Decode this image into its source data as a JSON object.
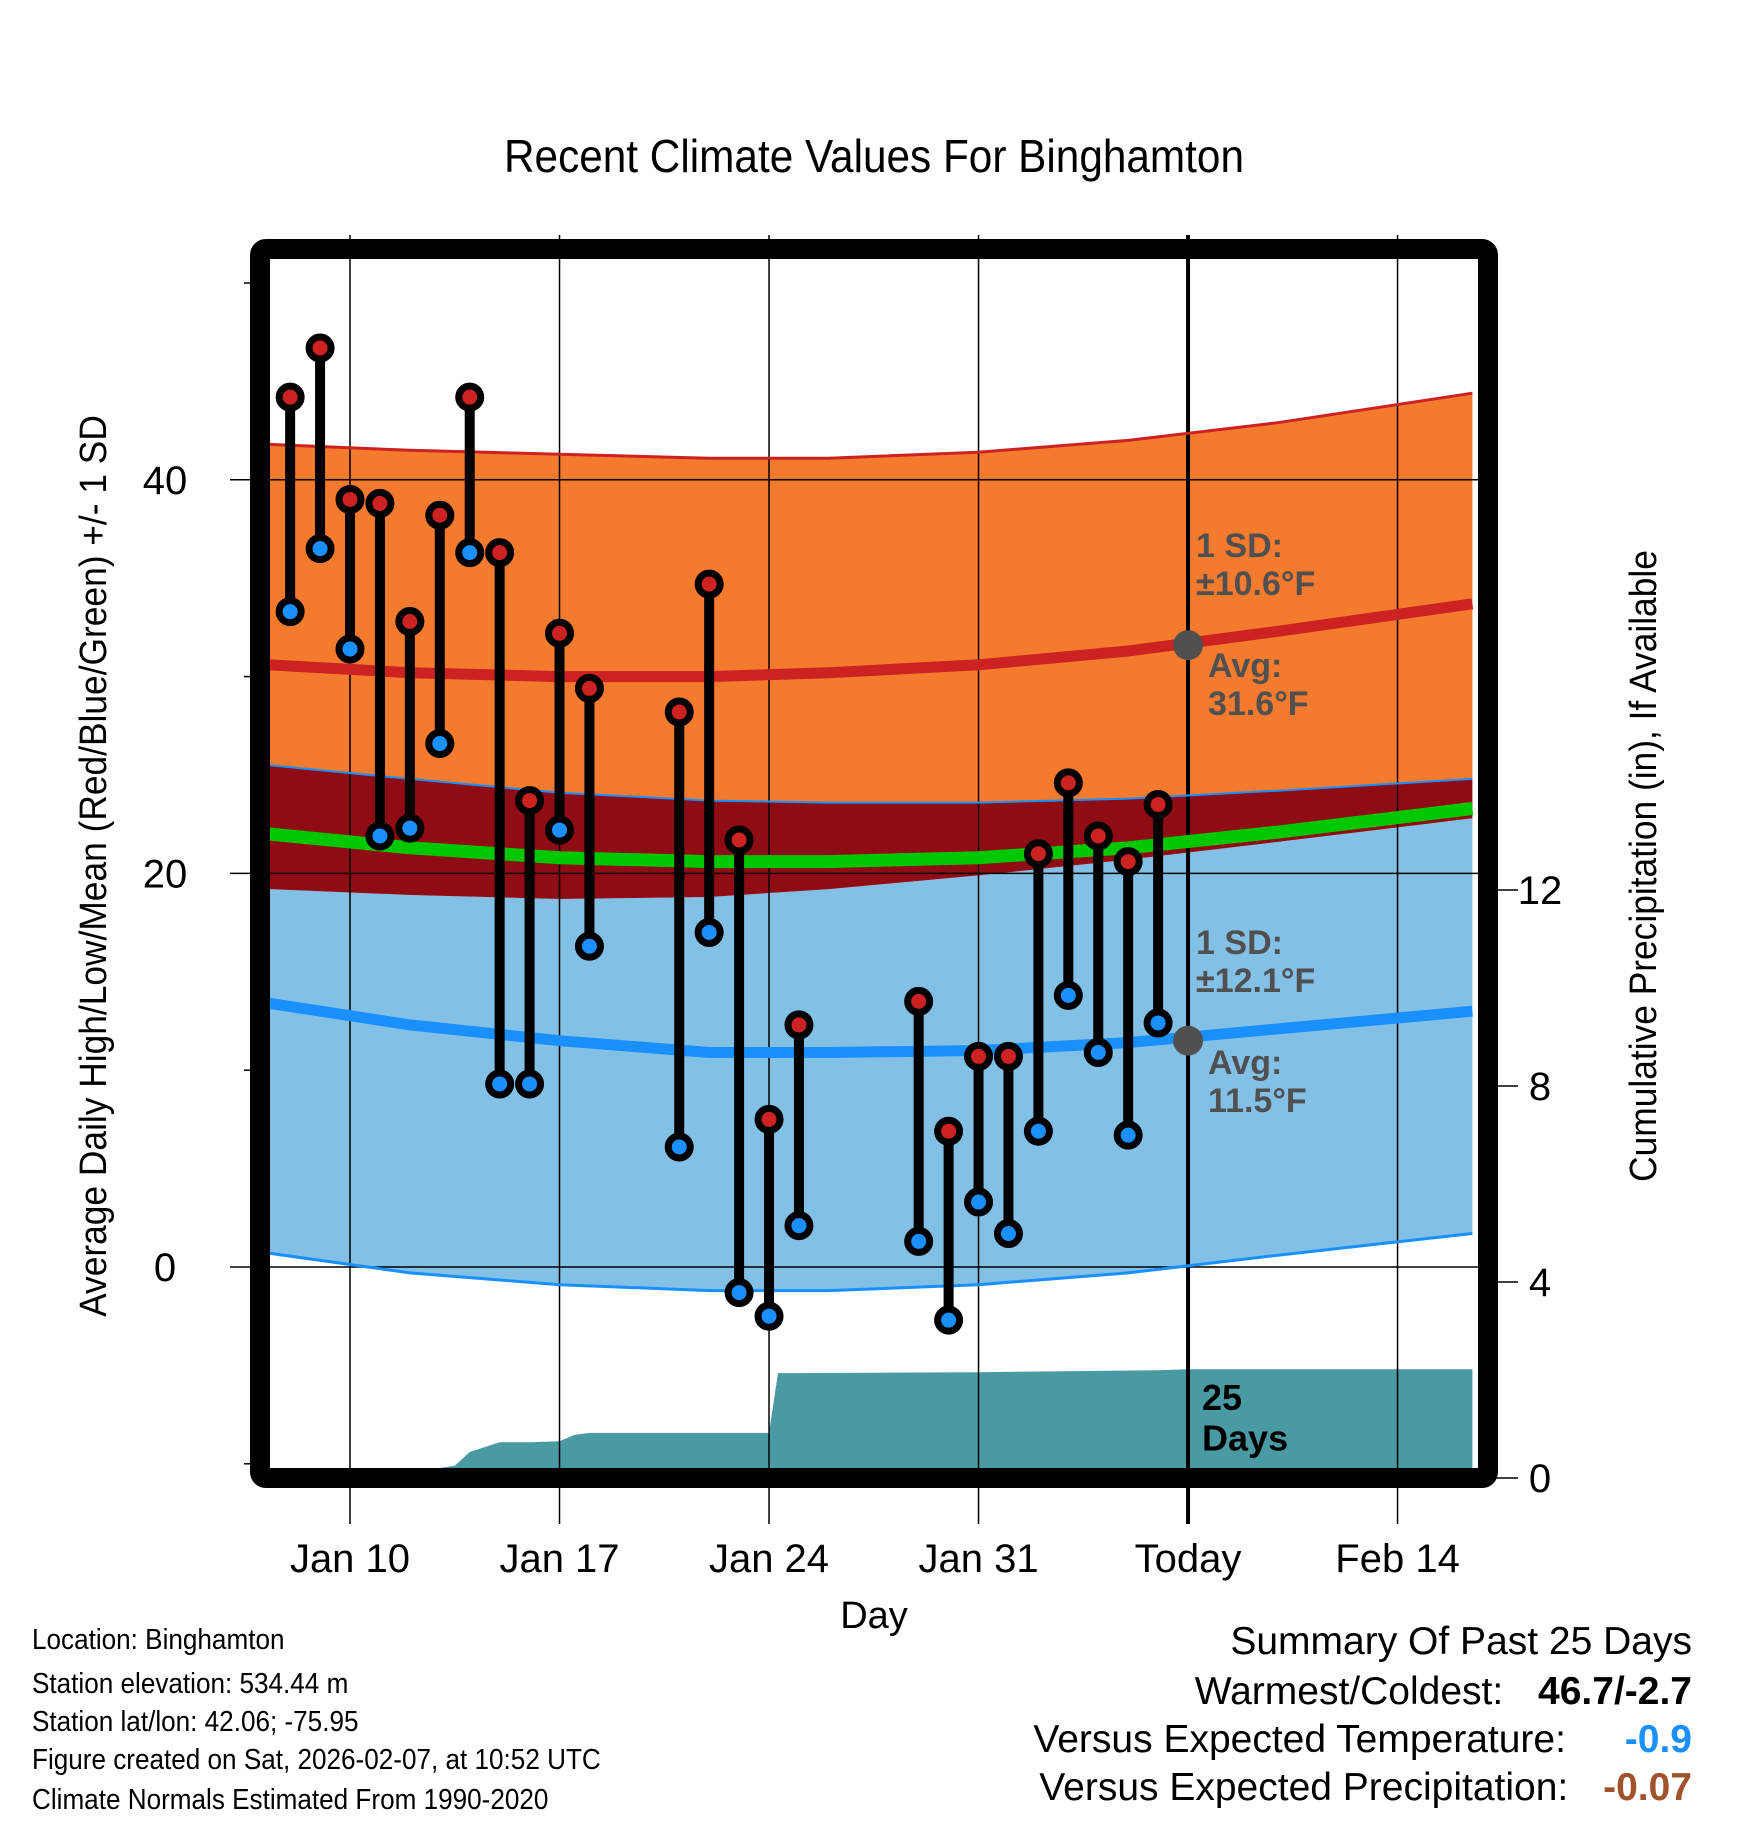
{
  "chart_data": {
    "type": "line",
    "title": "Recent Climate Values For Binghamton",
    "xlabel": "Day",
    "ylabel": "Average Daily High/Low/Mean (Red/Blue/Green) +/- 1 SD",
    "y2label": "Cumulative Precipitation (in), If Available",
    "ylim": [
      -10.2,
      51.2
    ],
    "y2lim": [
      -0.2,
      12.3
    ],
    "yticks": [
      0,
      20,
      40
    ],
    "yminor_ticks": [
      -10,
      10,
      30,
      50
    ],
    "y2ticks": [
      0,
      4,
      8,
      12
    ],
    "xlim_day": [
      7.3,
      47.5
    ],
    "xticks": [
      {
        "day": 10,
        "label": "Jan 10"
      },
      {
        "day": 17,
        "label": "Jan 17"
      },
      {
        "day": 24,
        "label": "Jan 24"
      },
      {
        "day": 31,
        "label": "Jan 31"
      },
      {
        "day": 38,
        "label": "Today"
      },
      {
        "day": 45,
        "label": "Feb 14"
      }
    ],
    "grid": true,
    "today_day": 38,
    "day_note": "day numbers count from Jan 1 (Feb 1 = day 32)",
    "observations": {
      "days": [
        8,
        9,
        10,
        11,
        12,
        13,
        14,
        15,
        16,
        17,
        18,
        21,
        22,
        23,
        24,
        25,
        29,
        30,
        31,
        32,
        33,
        34,
        35,
        36,
        37
      ],
      "highs": [
        44.2,
        46.7,
        39.0,
        38.8,
        32.8,
        38.2,
        44.2,
        36.3,
        23.7,
        32.2,
        29.4,
        28.2,
        34.7,
        21.7,
        7.5,
        12.3,
        13.5,
        6.9,
        10.7,
        10.7,
        21.0,
        24.6,
        21.9,
        20.6,
        23.5
      ],
      "lows": [
        33.3,
        36.5,
        31.4,
        21.9,
        22.3,
        26.6,
        36.3,
        9.3,
        9.3,
        22.2,
        16.3,
        6.1,
        17.0,
        -1.3,
        -2.5,
        2.1,
        1.3,
        -2.7,
        3.3,
        1.7,
        6.9,
        13.8,
        10.9,
        6.7,
        12.4
      ]
    },
    "normals": {
      "days": [
        7.3,
        12,
        17,
        22,
        26,
        31,
        36,
        41,
        47.5
      ],
      "high_plus_sd": [
        41.8,
        41.5,
        41.3,
        41.1,
        41.1,
        41.4,
        42.0,
        42.9,
        44.4
      ],
      "high_mean": [
        30.6,
        30.2,
        30.0,
        30.0,
        30.2,
        30.6,
        31.3,
        32.3,
        33.7
      ],
      "high_minus_sd": [
        25.5,
        24.8,
        24.1,
        23.7,
        23.6,
        23.6,
        23.8,
        24.2,
        24.8
      ],
      "mean": [
        22.0,
        21.3,
        20.8,
        20.6,
        20.6,
        20.8,
        21.3,
        22.1,
        23.3
      ],
      "low_plus_sd": [
        19.2,
        18.9,
        18.7,
        18.8,
        19.2,
        19.9,
        20.7,
        21.6,
        22.8
      ],
      "low_mean": [
        13.4,
        12.3,
        11.5,
        10.9,
        10.9,
        11.0,
        11.4,
        12.1,
        13.0
      ],
      "low_minus_sd": [
        0.7,
        -0.3,
        -0.9,
        -1.2,
        -1.2,
        -0.9,
        -0.3,
        0.6,
        1.7
      ]
    },
    "precipitation": {
      "days": [
        13.0,
        13.5,
        14.0,
        15.0,
        16.0,
        17.0,
        17.5,
        18.0,
        24.0,
        24.3,
        25.0,
        31.0,
        37.0,
        38.0,
        47.5
      ],
      "cum_in": [
        0.0,
        0.25,
        0.53,
        0.73,
        0.73,
        0.75,
        0.88,
        0.92,
        0.92,
        2.14,
        2.14,
        2.16,
        2.2,
        2.22,
        2.22
      ]
    },
    "annotations": {
      "high_sd_label": [
        "1 SD:",
        "±10.6°F"
      ],
      "high_avg_label": [
        "Avg:",
        "31.6°F"
      ],
      "high_avg_value": 31.6,
      "low_sd_label": [
        "1 SD:",
        "±12.1°F"
      ],
      "low_avg_label": [
        "Avg:",
        "11.5°F"
      ],
      "low_avg_value": 11.5,
      "days_label": [
        "25",
        "Days"
      ]
    },
    "colors": {
      "high_band": "#f47a2e",
      "high_line": "#cc2222",
      "overlap_band": "#8f0c14",
      "mean_line": "#00c800",
      "low_band": "#82c0e6",
      "low_line": "#1a90ff",
      "precip": "#4a9aa4",
      "annotation": "#505050"
    }
  },
  "info": {
    "location": "Location: Binghamton",
    "elevation": "Station elevation: 534.44 m",
    "latlon": "Station lat/lon: 42.06; -75.95",
    "created": "Figure created on Sat, 2026-02-07, at 10:52 UTC",
    "normals": "Climate Normals Estimated From 1990-2020"
  },
  "summary": {
    "title": "Summary Of Past 25 Days",
    "warmest_coldest_label": "Warmest/Coldest:",
    "warmest_coldest_value": "46.7/-2.7",
    "temp_label": "Versus Expected Temperature:",
    "temp_value": "-0.9",
    "temp_color": "#1a90ff",
    "precip_label": "Versus Expected Precipitation:",
    "precip_value": "-0.07",
    "precip_color": "#a0522d"
  }
}
